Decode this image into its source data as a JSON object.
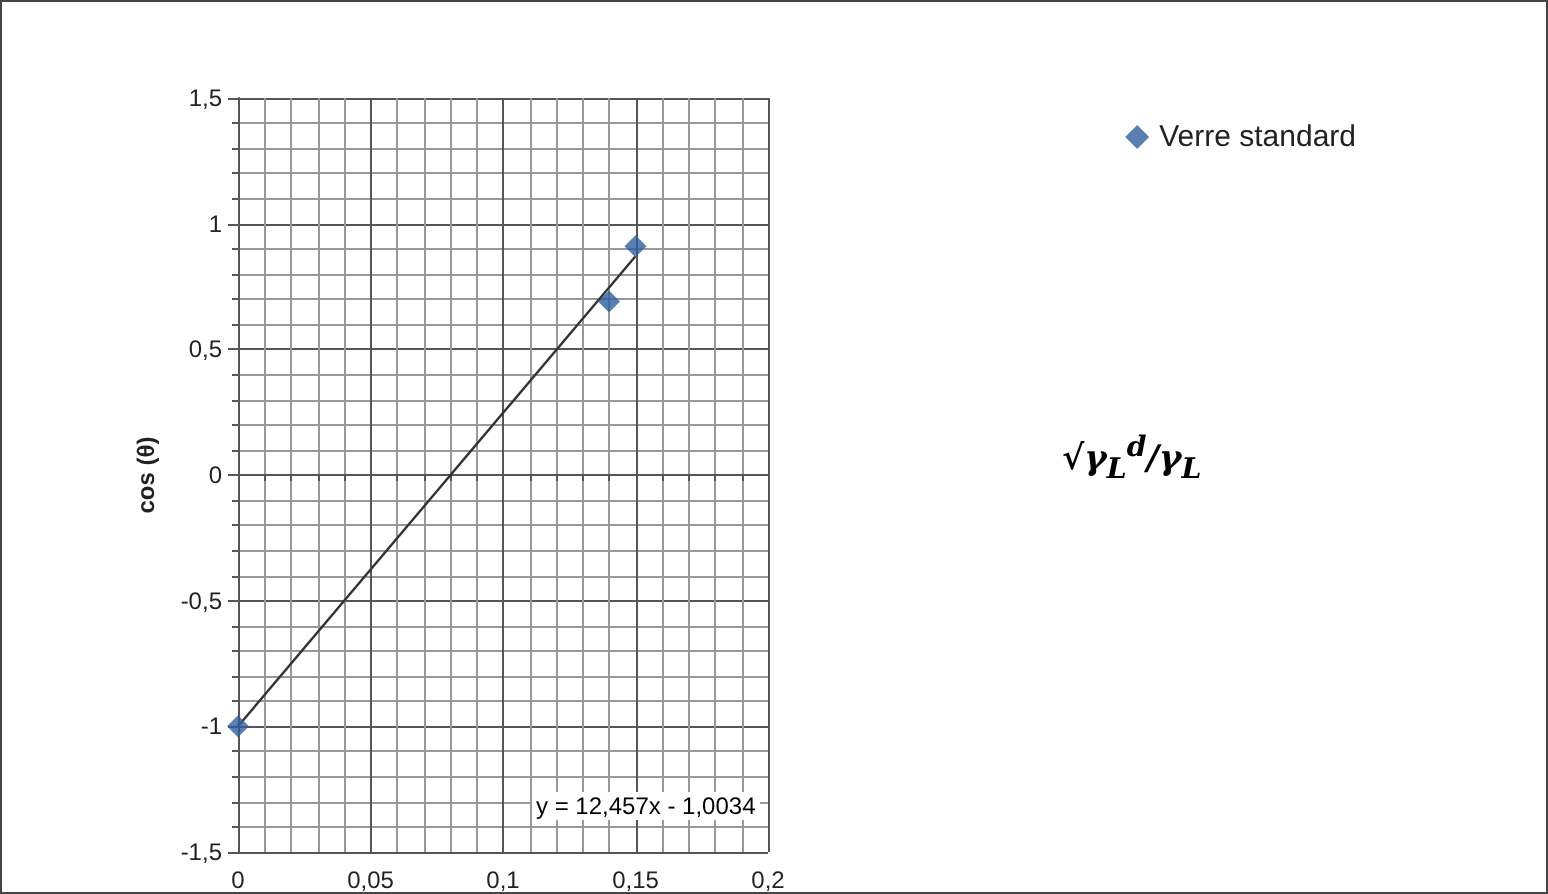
{
  "chart_data": {
    "type": "scatter",
    "ylabel": "cos (θ)",
    "annotations": [
      "y = 12,457x - 1,0034",
      "√γ$_{L}$$^{d}$/γ$_{L}$"
    ],
    "series": [
      {
        "name": "Verre standard",
        "color": "#2e5f9e",
        "marker": "diamond",
        "x": [
          0,
          0.14,
          0.15
        ],
        "values": [
          -1,
          0.69,
          0.91
        ]
      },
      {
        "type": "line",
        "color": "#333333",
        "marker": "none",
        "line_style": "solid",
        "x": [
          0,
          0.15
        ],
        "values": [
          -1.0,
          0.87
        ]
      }
    ],
    "xlim": [
      0,
      0.2
    ],
    "xticks": [
      0,
      {
        "value": 0.05,
        "label": "0,05"
      },
      {
        "value": 0.1,
        "label": "0,1"
      },
      {
        "value": 0.15,
        "label": "0,15"
      },
      {
        "value": 0.2,
        "label": "0,2"
      }
    ],
    "ylim": [
      -1.5,
      1.5
    ],
    "yticks": [
      {
        "value": -1.5,
        "label": "-1,5"
      },
      -1,
      {
        "value": -0.5,
        "label": "-0,5"
      },
      0,
      {
        "value": 0.5,
        "label": "0,5"
      },
      1,
      {
        "value": 1.5,
        "label": "1,5"
      }
    ],
    "grid": true,
    "legend": "right"
  }
}
